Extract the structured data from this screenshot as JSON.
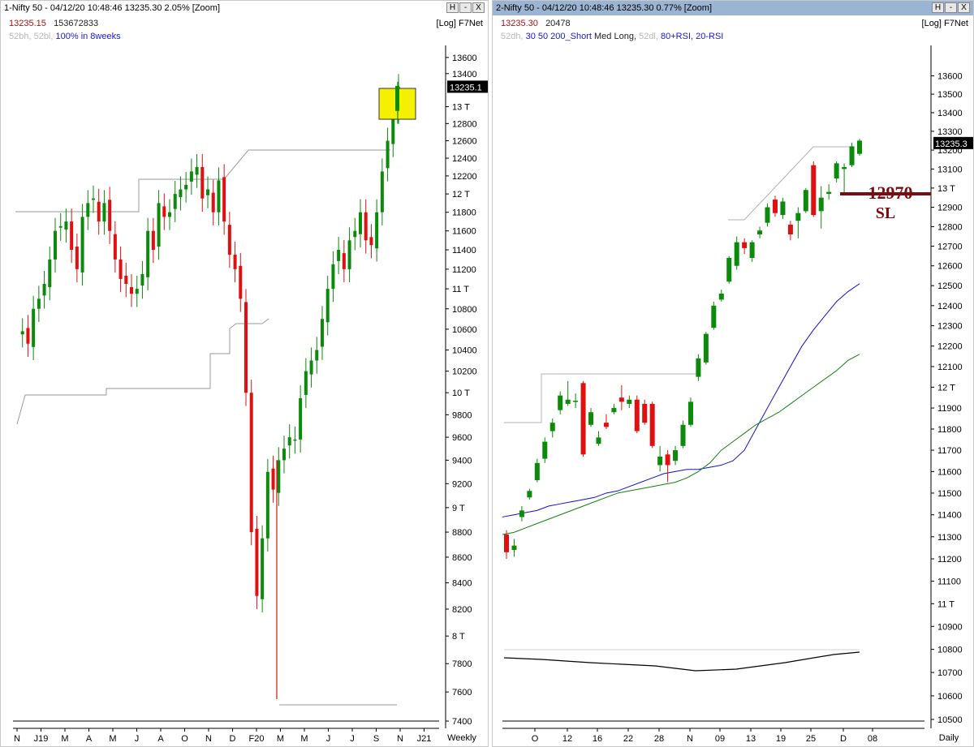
{
  "pane1": {
    "title": "1-Nifty 50 - 04/12/20 10:48:46 13235.30 2.05% [Zoom]",
    "buttons": [
      "H",
      "-",
      "X"
    ],
    "row2_price": "13235.15",
    "row2_vol": "153672833",
    "row2_right": "[Log] F7Net",
    "row3_grey": "52bh, 52bl,",
    "row3_blue": "100% in 8weeks",
    "price_tag": "13235.1",
    "yticks": [
      "13600",
      "13400",
      "13 T",
      "12800",
      "12600",
      "12400",
      "12200",
      "12 T",
      "11800",
      "11600",
      "11400",
      "11200",
      "11 T",
      "10800",
      "10600",
      "10400",
      "10200",
      "10 T",
      "9800",
      "9600",
      "9400",
      "9200",
      "9 T",
      "8800",
      "8600",
      "8400",
      "8200",
      "8 T",
      "7800",
      "7600",
      "7400"
    ],
    "xticks": [
      "N",
      "J19",
      "M",
      "A",
      "M",
      "J",
      "A",
      "O",
      "N",
      "D",
      "F20",
      "M",
      "M",
      "J",
      "J",
      "S",
      "N",
      "J21"
    ],
    "timeframe": "Weekly"
  },
  "pane2": {
    "title": "2-Nifty 50 - 04/12/20 10:48:46 13235.30 0.77% [Zoom]",
    "buttons": [
      "H",
      "-",
      "X"
    ],
    "row2_price": "13235.30",
    "row2_vol": "20478",
    "row2_right": "[Log] F7Net",
    "row3_grey1": "52dh,",
    "row3_blue1": "30 50 200_Short",
    "row3_black": "Med",
    "row3_blue2": "Long,",
    "row3_grey2": "52dl,",
    "row3_blue3": "80+RSI, 20-RSI",
    "price_tag": "13235.3",
    "sl_value": "12970",
    "sl_label": "SL",
    "yticks": [
      "13600",
      "13500",
      "13400",
      "13300",
      "13200",
      "13100",
      "13 T",
      "12900",
      "12800",
      "12700",
      "12600",
      "12500",
      "12400",
      "12300",
      "12200",
      "12100",
      "12 T",
      "11900",
      "11800",
      "11700",
      "11600",
      "11500",
      "11400",
      "11300",
      "11200",
      "11100",
      "11 T",
      "10900",
      "10800",
      "10700",
      "10600",
      "10500"
    ],
    "xticks": [
      "O",
      "12",
      "16",
      "22",
      "28",
      "N",
      "09",
      "13",
      "19",
      "25",
      "D",
      "08"
    ],
    "timeframe": "Daily"
  },
  "colors": {
    "up": "#0b8a0b",
    "down": "#e01010",
    "highlight": "#f5f000",
    "ma_short": "#1010c8",
    "ma_med": "#108010",
    "sl_line": "#7a0d12"
  },
  "chart_data": [
    {
      "type": "candlestick",
      "title": "1-Nifty 50 - 04/12/20 10:48:46 13235.30 2.05% [Zoom]",
      "timeframe": "Weekly",
      "scale": "log",
      "ylim": [
        7400,
        13700
      ],
      "x_labels": [
        "N",
        "J19",
        "M",
        "A",
        "M",
        "J",
        "A",
        "O",
        "N",
        "D",
        "F20",
        "M",
        "M",
        "J",
        "J",
        "S",
        "N",
        "J21"
      ],
      "close_path": [
        10550,
        10580,
        10460,
        10800,
        10900,
        11050,
        11300,
        11600,
        11650,
        11700,
        11400,
        11200,
        11750,
        11900,
        11950,
        11700,
        11900,
        11600,
        11300,
        11100,
        11050,
        10950,
        11000,
        11150,
        11600,
        11400,
        11900,
        11750,
        11800,
        12000,
        12050,
        12100,
        12250,
        12300,
        11950,
        12050,
        11800,
        12150,
        11700,
        11350,
        11200,
        10900,
        10000,
        8800,
        8300,
        8750,
        9300,
        9150,
        9400,
        9500,
        9600,
        9580,
        9950,
        10200,
        10300,
        10400,
        10700,
        11000,
        11250,
        11400,
        11200,
        11500,
        11600,
        11800,
        11500,
        11450,
        11800,
        12250,
        12600,
        12950,
        13235
      ],
      "last_price": 13235.15
    },
    {
      "type": "candlestick",
      "title": "2-Nifty 50 - 04/12/20 10:48:46 13235.30 0.77% [Zoom]",
      "timeframe": "Daily",
      "scale": "log",
      "ylim": [
        10500,
        13700
      ],
      "x_labels": [
        "O",
        "12",
        "16",
        "22",
        "28",
        "N",
        "09",
        "13",
        "19",
        "25",
        "D",
        "08"
      ],
      "candles": [
        {
          "o": 11310,
          "c": 11230,
          "h": 11330,
          "l": 11200
        },
        {
          "o": 11240,
          "c": 11260,
          "h": 11290,
          "l": 11210
        },
        {
          "o": 11390,
          "c": 11420,
          "h": 11440,
          "l": 11370
        },
        {
          "o": 11480,
          "c": 11510,
          "h": 11520,
          "l": 11470
        },
        {
          "o": 11560,
          "c": 11640,
          "h": 11660,
          "l": 11550
        },
        {
          "o": 11660,
          "c": 11740,
          "h": 11760,
          "l": 11640
        },
        {
          "o": 11790,
          "c": 11830,
          "h": 11850,
          "l": 11760
        },
        {
          "o": 11890,
          "c": 11960,
          "h": 11980,
          "l": 11870
        },
        {
          "o": 11920,
          "c": 11940,
          "h": 12030,
          "l": 11910
        },
        {
          "o": 11930,
          "c": 11935,
          "h": 11970,
          "l": 11900
        },
        {
          "o": 12020,
          "c": 11680,
          "h": 12030,
          "l": 11670
        },
        {
          "o": 11820,
          "c": 11880,
          "h": 11900,
          "l": 11810
        },
        {
          "o": 11730,
          "c": 11760,
          "h": 11790,
          "l": 11720
        },
        {
          "o": 11830,
          "c": 11810,
          "h": 11870,
          "l": 11800
        },
        {
          "o": 11880,
          "c": 11900,
          "h": 11920,
          "l": 11870
        },
        {
          "o": 11950,
          "c": 11930,
          "h": 12010,
          "l": 11890
        },
        {
          "o": 11920,
          "c": 11940,
          "h": 11960,
          "l": 11900
        },
        {
          "o": 11940,
          "c": 11790,
          "h": 11960,
          "l": 11780
        },
        {
          "o": 11920,
          "c": 11830,
          "h": 11940,
          "l": 11820
        },
        {
          "o": 11920,
          "c": 11720,
          "h": 11930,
          "l": 11710
        },
        {
          "o": 11630,
          "c": 11670,
          "h": 11720,
          "l": 11600
        },
        {
          "o": 11680,
          "c": 11630,
          "h": 11700,
          "l": 11550
        },
        {
          "o": 11650,
          "c": 11700,
          "h": 11720,
          "l": 11630
        },
        {
          "o": 11720,
          "c": 11820,
          "h": 11840,
          "l": 11710
        },
        {
          "o": 11820,
          "c": 11930,
          "h": 11950,
          "l": 11810
        },
        {
          "o": 12050,
          "c": 12140,
          "h": 12160,
          "l": 12030
        },
        {
          "o": 12120,
          "c": 12260,
          "h": 12270,
          "l": 12110
        },
        {
          "o": 12290,
          "c": 12400,
          "h": 12420,
          "l": 12280
        },
        {
          "o": 12430,
          "c": 12460,
          "h": 12480,
          "l": 12420
        },
        {
          "o": 12520,
          "c": 12640,
          "h": 12650,
          "l": 12510
        },
        {
          "o": 12600,
          "c": 12720,
          "h": 12750,
          "l": 12580
        },
        {
          "o": 12720,
          "c": 12690,
          "h": 12740,
          "l": 12660
        },
        {
          "o": 12640,
          "c": 12720,
          "h": 12730,
          "l": 12620
        },
        {
          "o": 12760,
          "c": 12780,
          "h": 12800,
          "l": 12740
        },
        {
          "o": 12820,
          "c": 12900,
          "h": 12920,
          "l": 12800
        },
        {
          "o": 12940,
          "c": 12870,
          "h": 12960,
          "l": 12850
        },
        {
          "o": 12860,
          "c": 12930,
          "h": 12950,
          "l": 12840
        },
        {
          "o": 12810,
          "c": 12760,
          "h": 12830,
          "l": 12730
        },
        {
          "o": 12830,
          "c": 12870,
          "h": 12900,
          "l": 12740
        },
        {
          "o": 12880,
          "c": 12990,
          "h": 13000,
          "l": 12870
        },
        {
          "o": 13120,
          "c": 12860,
          "h": 13140,
          "l": 12850
        },
        {
          "o": 12880,
          "c": 12950,
          "h": 13010,
          "l": 12790
        },
        {
          "o": 12970,
          "c": 12980,
          "h": 13020,
          "l": 12940
        },
        {
          "o": 13050,
          "c": 13130,
          "h": 13140,
          "l": 13030
        },
        {
          "o": 13100,
          "c": 13110,
          "h": 13130,
          "l": 12970
        },
        {
          "o": 13120,
          "c": 13220,
          "h": 13240,
          "l": 13110
        },
        {
          "o": 13180,
          "c": 13250,
          "h": 13260,
          "l": 13170
        }
      ],
      "ma_short": [
        11390,
        11400,
        11410,
        11420,
        11440,
        11450,
        11460,
        11470,
        11480,
        11500,
        11510,
        11530,
        11550,
        11570,
        11590,
        11600,
        11610,
        11610,
        11620,
        11630,
        11650,
        11700,
        11800,
        11900,
        12000,
        12100,
        12200,
        12280,
        12350,
        12420,
        12470,
        12510
      ],
      "ma_med": [
        11310,
        11320,
        11340,
        11360,
        11380,
        11400,
        11420,
        11440,
        11460,
        11480,
        11500,
        11510,
        11520,
        11530,
        11540,
        11550,
        11570,
        11600,
        11640,
        11700,
        11740,
        11780,
        11820,
        11850,
        11880,
        11920,
        11960,
        12000,
        12040,
        12080,
        12130,
        12160
      ],
      "stop_loss": 12970,
      "sl_value": "12970",
      "sl_label": "SL",
      "last_price": 13235.3
    }
  ]
}
